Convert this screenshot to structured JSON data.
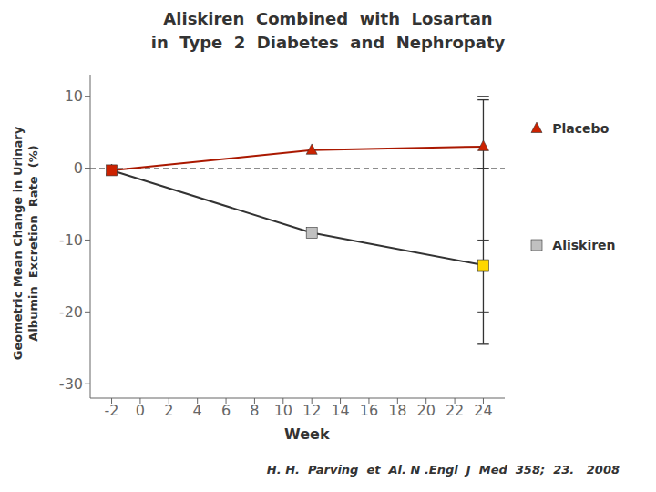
{
  "chart_data": {
    "type": "line",
    "title": "Aliskiren  Combined  with  Losartan\nin  Type  2  Diabetes  and  Nephropaty",
    "x_label": "Week",
    "y_label": "Geometric Mean Change in Urinary\nAlbumin  Excretion  Rate  (%)",
    "annotations": [
      {
        "text": "H. H.  Parving  et  Al. N .Engl  J  Med  358;  23.   2008"
      }
    ],
    "xlim": [
      -3.5,
      25.5
    ],
    "xticks": [
      -2,
      0,
      2,
      4,
      6,
      8,
      10,
      12,
      14,
      16,
      18,
      20,
      22,
      24
    ],
    "ylim": [
      -32,
      13
    ],
    "yticks": [
      10,
      0,
      -10,
      -20,
      -30
    ],
    "grid": false,
    "legend": "right",
    "x": [
      -2,
      12,
      24
    ],
    "series": [
      {
        "name": "Placebo",
        "values": [
          -0.3,
          2.5,
          3.0
        ],
        "color": "#AA1800",
        "colors": [
          "#CC2200",
          "#CC2200",
          "#CC2200"
        ],
        "marker": "triangle"
      },
      {
        "name": "Aliskiren",
        "values": [
          -0.3,
          -9.0,
          -13.5
        ],
        "color": "#333333",
        "colors": [
          "#CC2200",
          "#C0C0C0",
          "#FFD700"
        ],
        "marker": "square"
      }
    ],
    "error_bars": [
      {
        "x": 24,
        "low": -24.5,
        "high": 9.5,
        "ticks": [
          -20,
          -10,
          0,
          10
        ],
        "color": "#333333"
      }
    ],
    "hlines": [
      {
        "y": 0,
        "color": "#888888",
        "line_style": "dashed"
      }
    ]
  }
}
